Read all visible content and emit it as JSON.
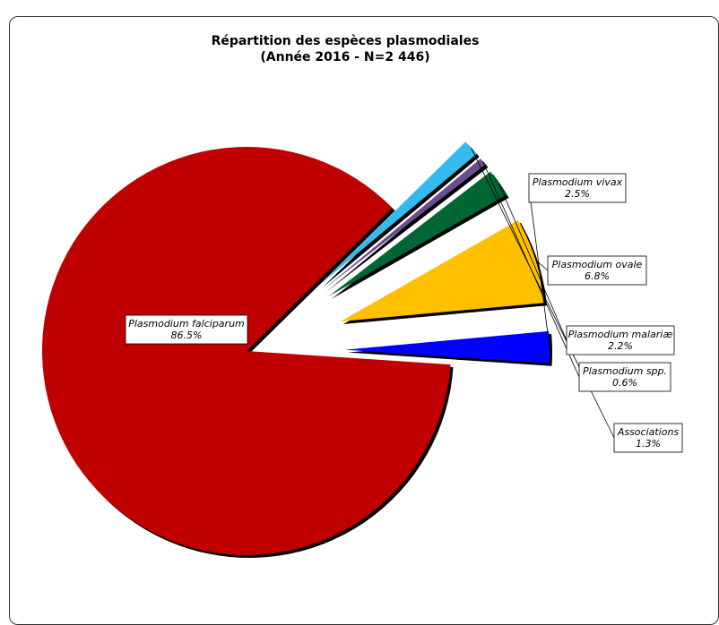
{
  "chart_data": {
    "type": "pie",
    "title": "Répartition des espèces plasmodiales",
    "subtitle": "(Année 2016 - N=2 446)",
    "slices": [
      {
        "name": "Plasmodium falciparum",
        "value": 86.5,
        "label": "86.5%",
        "color": "#c00000"
      },
      {
        "name": "Plasmodium vivax",
        "value": 2.5,
        "label": "2.5%",
        "color": "#0000ff"
      },
      {
        "name": "Plasmodium ovale",
        "value": 6.8,
        "label": "6.8%",
        "color": "#ffc000"
      },
      {
        "name": "Plasmodium malariæ",
        "value": 2.2,
        "label": "2.2%",
        "color": "#006633"
      },
      {
        "name": "Plasmodium spp.",
        "value": 0.6,
        "label": "0.6%",
        "color": "#6a4c8f"
      },
      {
        "name": "Associations",
        "value": 1.3,
        "label": "1.3%",
        "color": "#33bbee"
      }
    ]
  }
}
